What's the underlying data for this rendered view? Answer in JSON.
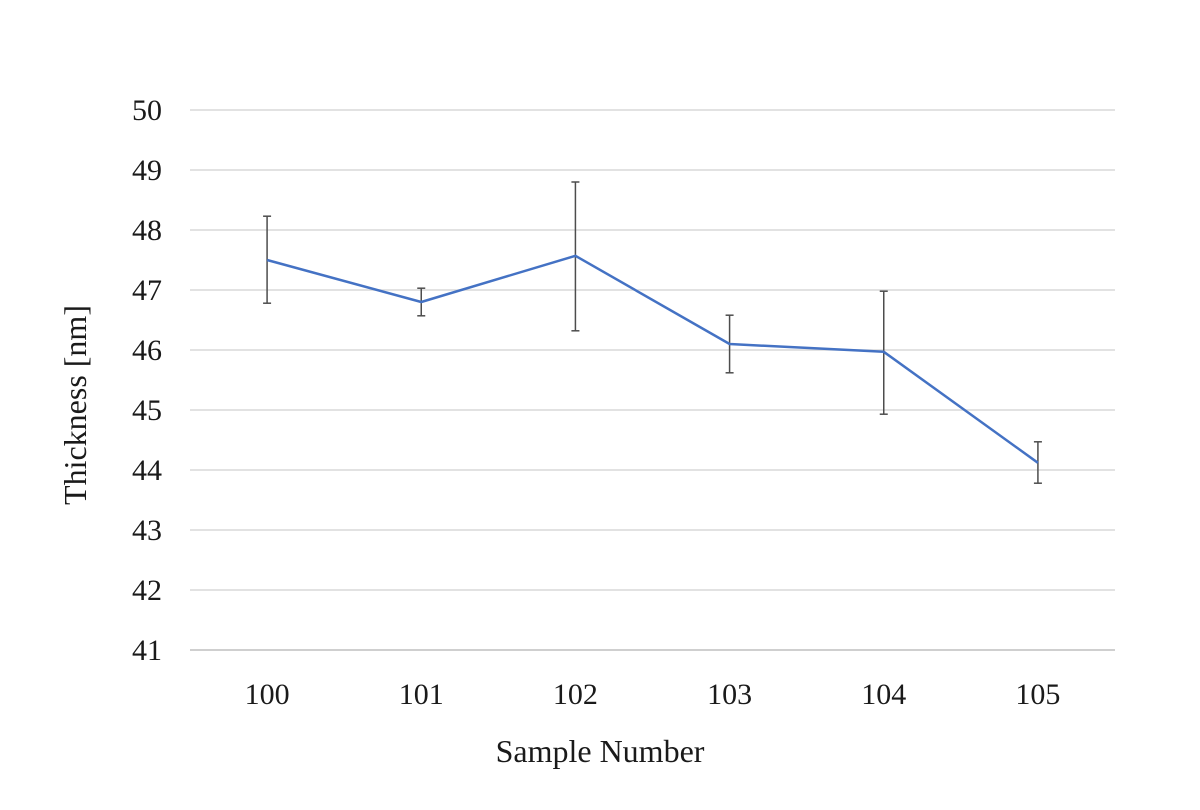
{
  "chart_data": {
    "type": "line",
    "title": "",
    "xlabel": "Sample Number",
    "ylabel": "Thickness [nm]",
    "categories": [
      "100",
      "101",
      "102",
      "103",
      "104",
      "105"
    ],
    "ylim": [
      41,
      50
    ],
    "yticks": [
      41,
      42,
      43,
      44,
      45,
      46,
      47,
      48,
      49,
      50
    ],
    "grid": true,
    "legend": "none",
    "series": [
      {
        "values": [
          47.5,
          46.8,
          47.57,
          46.1,
          45.97,
          44.12
        ],
        "error_upper": [
          48.23,
          47.03,
          48.8,
          46.58,
          46.98,
          44.47
        ],
        "error_lower": [
          46.78,
          46.57,
          46.32,
          45.62,
          44.93,
          43.78
        ],
        "color": "#4472C4"
      }
    ],
    "colors": {
      "line": "#4472C4",
      "error_bar": "#4d4d4d",
      "grid": "#d9d9d9",
      "axis": "#bfbfbf"
    }
  }
}
